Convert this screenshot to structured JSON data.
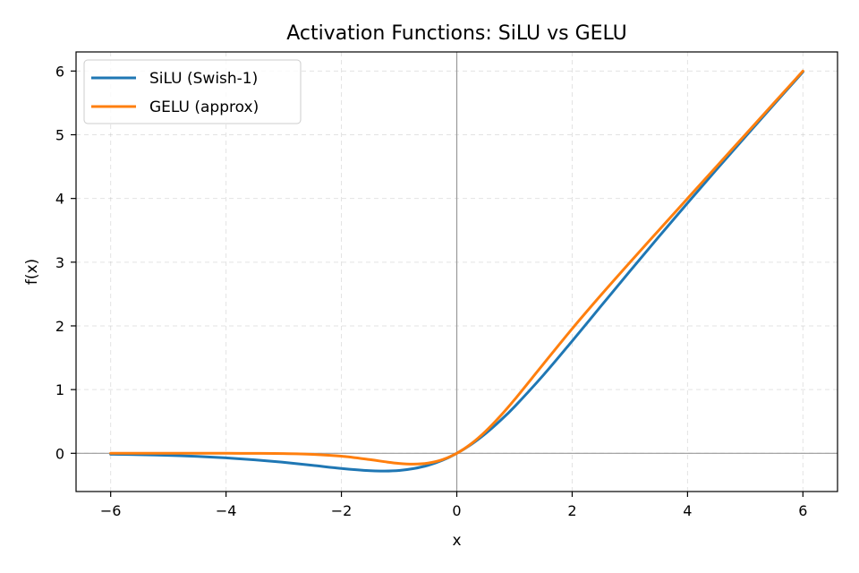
{
  "chart_data": {
    "type": "line",
    "title": "Activation Functions: SiLU vs GELU",
    "xlabel": "x",
    "ylabel": "f(x)",
    "xlim": [
      -6.6,
      6.6
    ],
    "ylim": [
      -0.6,
      6.3
    ],
    "xticks": [
      -6,
      -4,
      -2,
      0,
      2,
      4,
      6
    ],
    "yticks": [
      0,
      1,
      2,
      3,
      4,
      5,
      6
    ],
    "grid": true,
    "legend_position": "top-left",
    "reference_lines": {
      "x": 0,
      "y": 0
    },
    "series": [
      {
        "name": "SiLU (Swish-1)",
        "color": "#1f77b4",
        "x": [
          -6,
          -5.5,
          -5,
          -4.5,
          -4,
          -3.5,
          -3,
          -2.5,
          -2,
          -1.5,
          -1.25,
          -1,
          -0.75,
          -0.5,
          -0.25,
          0,
          0.25,
          0.5,
          0.75,
          1,
          1.5,
          2,
          2.5,
          3,
          3.5,
          4,
          4.5,
          5,
          5.5,
          6
        ],
        "values": [
          -0.015,
          -0.022,
          -0.033,
          -0.049,
          -0.072,
          -0.103,
          -0.142,
          -0.189,
          -0.238,
          -0.274,
          -0.278,
          -0.269,
          -0.24,
          -0.189,
          -0.11,
          0,
          0.14,
          0.311,
          0.51,
          0.731,
          1.226,
          1.762,
          2.311,
          2.858,
          3.397,
          3.928,
          4.451,
          4.967,
          5.478,
          5.985
        ]
      },
      {
        "name": "GELU (approx)",
        "color": "#ff7f0e",
        "x": [
          -6,
          -5.5,
          -5,
          -4.5,
          -4,
          -3.5,
          -3,
          -2.5,
          -2,
          -1.5,
          -1.25,
          -1,
          -0.75,
          -0.5,
          -0.25,
          0,
          0.25,
          0.5,
          0.75,
          1,
          1.5,
          2,
          2.5,
          3,
          3.5,
          4,
          4.5,
          5,
          5.5,
          6
        ],
        "values": [
          0,
          0,
          0,
          0,
          0,
          -0.001,
          -0.004,
          -0.016,
          -0.045,
          -0.1,
          -0.132,
          -0.159,
          -0.17,
          -0.154,
          -0.1,
          0,
          0.15,
          0.346,
          0.58,
          0.841,
          1.4,
          1.955,
          2.484,
          2.996,
          3.499,
          4.0,
          4.5,
          5.0,
          5.5,
          6.0
        ]
      }
    ]
  }
}
